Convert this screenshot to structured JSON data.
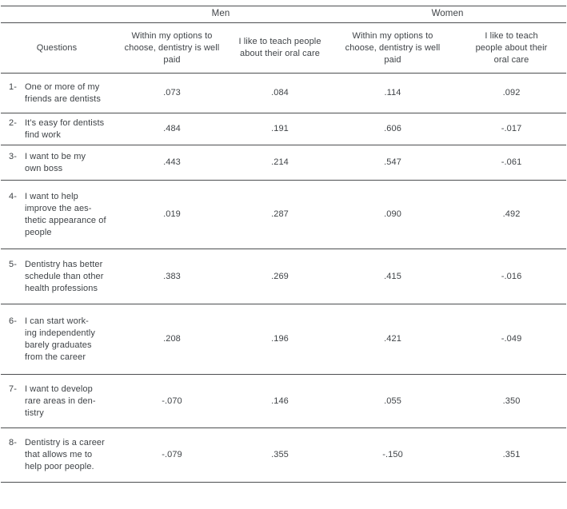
{
  "table": {
    "colors": {
      "text": "#3f4347",
      "rule": "#4c4e50",
      "background": "#ffffff"
    },
    "group_headers": {
      "men": "Men",
      "women": "Women"
    },
    "col_headers": {
      "questions": "Questions",
      "men_paid": "Within my options to\nchoose, dentistry is well\npaid",
      "men_teach": "I like to teach people\nabout their oral care",
      "women_paid": "Within my options to\nchoose, dentistry is well\npaid",
      "women_teach": "I like to teach\npeople about their\noral care"
    },
    "rows": [
      {
        "num": "1-",
        "question": "One or more of my\nfriends are dentists",
        "men_paid": ".073",
        "men_teach": ".084",
        "women_paid": ".114",
        "women_teach": ".092"
      },
      {
        "num": "2-",
        "question": "It’s easy for dentists\nfind work",
        "men_paid": ".484",
        "men_teach": ".191",
        "women_paid": ".606",
        "women_teach": "-.017"
      },
      {
        "num": "3-",
        "question": "I want to be my\nown boss",
        "men_paid": ".443",
        "men_teach": ".214",
        "women_paid": ".547",
        "women_teach": "-.061"
      },
      {
        "num": "4-",
        "question": "I want to help\nimprove the aes-\nthetic appearance of\npeople",
        "men_paid": ".019",
        "men_teach": ".287",
        "women_paid": ".090",
        "women_teach": ".492"
      },
      {
        "num": "5-",
        "question": "Dentistry has better\nschedule than other\nhealth professions",
        "men_paid": ".383",
        "men_teach": ".269",
        "women_paid": ".415",
        "women_teach": "-.016"
      },
      {
        "num": "6-",
        "question": "I can start work-\ning independently\nbarely graduates\nfrom the career",
        "men_paid": ".208",
        "men_teach": ".196",
        "women_paid": ".421",
        "women_teach": "-.049"
      },
      {
        "num": "7-",
        "question": "I want to develop\nrare areas in den-\ntistry",
        "men_paid": "-.070",
        "men_teach": ".146",
        "women_paid": ".055",
        "women_teach": ".350"
      },
      {
        "num": "8-",
        "question": "Dentistry is a career\nthat allows me to\nhelp poor people.",
        "men_paid": "-.079",
        "men_teach": ".355",
        "women_paid": "-.150",
        "women_teach": ".351"
      }
    ]
  }
}
